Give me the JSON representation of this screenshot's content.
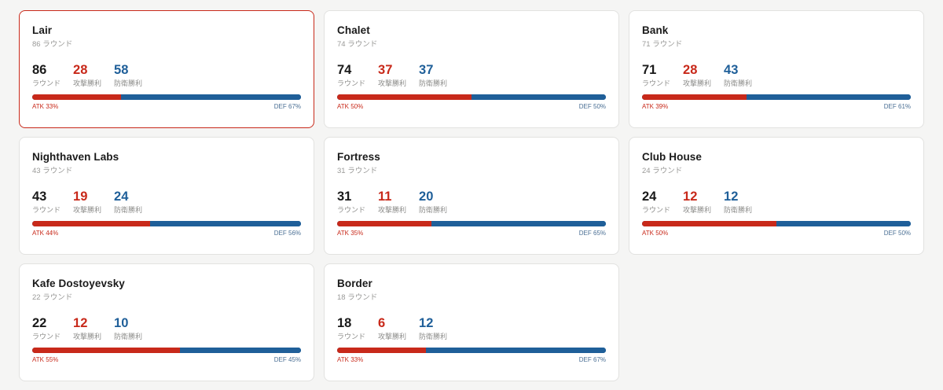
{
  "labels": {
    "rounds": "ラウンド",
    "atk_wins": "攻撃勝利",
    "def_wins": "防衛勝利"
  },
  "colors": {
    "attack": "#c8291a",
    "defense": "#1f5f99",
    "selected_border": "#c8291a"
  },
  "maps": [
    {
      "name": "Lair",
      "subtitle": "86 ラウンド",
      "rounds": "86",
      "atk": "28",
      "def": "58",
      "atk_pct": 33,
      "atk_text": "ATK 33%",
      "def_text": "DEF 67%",
      "selected": true
    },
    {
      "name": "Chalet",
      "subtitle": "74 ラウンド",
      "rounds": "74",
      "atk": "37",
      "def": "37",
      "atk_pct": 50,
      "atk_text": "ATK 50%",
      "def_text": "DEF 50%",
      "selected": false
    },
    {
      "name": "Bank",
      "subtitle": "71 ラウンド",
      "rounds": "71",
      "atk": "28",
      "def": "43",
      "atk_pct": 39,
      "atk_text": "ATK 39%",
      "def_text": "DEF 61%",
      "selected": false
    },
    {
      "name": "Nighthaven Labs",
      "subtitle": "43 ラウンド",
      "rounds": "43",
      "atk": "19",
      "def": "24",
      "atk_pct": 44,
      "atk_text": "ATK 44%",
      "def_text": "DEF 56%",
      "selected": false
    },
    {
      "name": "Fortress",
      "subtitle": "31 ラウンド",
      "rounds": "31",
      "atk": "11",
      "def": "20",
      "atk_pct": 35,
      "atk_text": "ATK 35%",
      "def_text": "DEF 65%",
      "selected": false
    },
    {
      "name": "Club House",
      "subtitle": "24 ラウンド",
      "rounds": "24",
      "atk": "12",
      "def": "12",
      "atk_pct": 50,
      "atk_text": "ATK 50%",
      "def_text": "DEF 50%",
      "selected": false
    },
    {
      "name": "Kafe Dostoyevsky",
      "subtitle": "22 ラウンド",
      "rounds": "22",
      "atk": "12",
      "def": "10",
      "atk_pct": 55,
      "atk_text": "ATK 55%",
      "def_text": "DEF 45%",
      "selected": false
    },
    {
      "name": "Border",
      "subtitle": "18 ラウンド",
      "rounds": "18",
      "atk": "6",
      "def": "12",
      "atk_pct": 33,
      "atk_text": "ATK 33%",
      "def_text": "DEF 67%",
      "selected": false
    }
  ]
}
